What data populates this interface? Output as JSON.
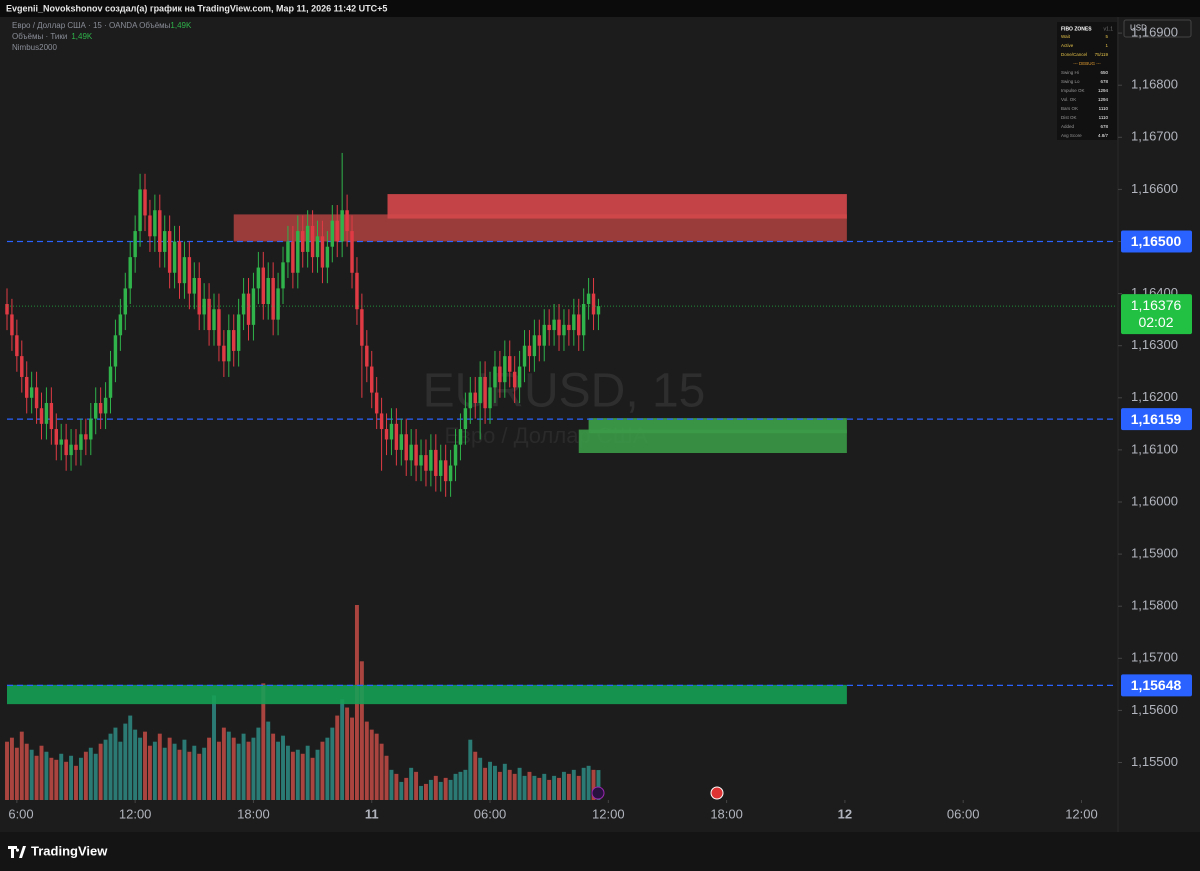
{
  "header": "Evgenii_Novokshonov создал(а) график на TradingView.com, Мар 11, 2026 11:42 UTC+5",
  "legend": {
    "symbol": "Евро / Доллар США · 15 · OANDA  Объёмы",
    "symbol_volume": "1,49K",
    "volume": "Объёмы · Тики",
    "volume_value": "1,49K",
    "indicator": "Nimbus2000"
  },
  "currency": "USD",
  "fibo_table": {
    "title": "FIBO ZONES",
    "version": "v1.1",
    "rows": [
      [
        "Wait",
        "5"
      ],
      [
        "Active",
        "1"
      ],
      [
        "Done/Cancel",
        "75/119"
      ]
    ],
    "debug": "--- DEBUG ---",
    "debug_rows": [
      [
        "Swing Hi",
        "650"
      ],
      [
        "Swing Lo",
        "678"
      ],
      [
        "Impulse OK",
        "1294"
      ],
      [
        "Vol. OK",
        "1294"
      ],
      [
        "Bars OK",
        "1110"
      ],
      [
        "Dist OK",
        "1110"
      ],
      [
        "Added",
        "678"
      ],
      [
        "Avg Score",
        "4.8/7"
      ]
    ]
  },
  "brand": "TradingView",
  "chart_data": {
    "type": "candlestick",
    "watermark": "EURUSD, 15",
    "watermark_subtitle": "Евро / Доллар США",
    "x": [
      -0.5,
      -0.25,
      0,
      0.25,
      0.5,
      0.75,
      1,
      1.25,
      1.5,
      1.75,
      2,
      2.25,
      2.5,
      2.75,
      3,
      3.25,
      3.5,
      3.75,
      4,
      4.25,
      4.5,
      4.75,
      5,
      5.25,
      5.5,
      5.75,
      6,
      6.25,
      6.5,
      6.75,
      7,
      7.25,
      7.5,
      7.75,
      8,
      8.25,
      8.5,
      8.75,
      9,
      9.25,
      9.5,
      9.75,
      10,
      10.25,
      10.5,
      10.75,
      11,
      11.25,
      11.5,
      11.75,
      12,
      12.25,
      12.5,
      12.75,
      13,
      13.25,
      13.5,
      13.75,
      14,
      14.25,
      14.5,
      14.75,
      15,
      15.25,
      15.5,
      15.75,
      16,
      16.25,
      16.5,
      16.75,
      17,
      17.25,
      17.5,
      17.75,
      18,
      18.25,
      18.5,
      18.75,
      19,
      19.25,
      19.5,
      19.75,
      20,
      20.25,
      20.5,
      20.75,
      21,
      21.25,
      21.5,
      21.75,
      22,
      22.25,
      22.5,
      22.75,
      23,
      23.25,
      23.5,
      23.75,
      24,
      24.25,
      24.5,
      24.75,
      25,
      25.25,
      25.5,
      25.75,
      26,
      26.25,
      26.5,
      26.75,
      27,
      27.25,
      27.5,
      27.75,
      28,
      28.25,
      28.5,
      28.75,
      29,
      29.25,
      29.5
    ],
    "open": [
      1.1638,
      1.1636,
      1.1632,
      1.1628,
      1.1624,
      1.162,
      1.1622,
      1.1618,
      1.1615,
      1.1619,
      1.1614,
      1.1611,
      1.1612,
      1.1609,
      1.1611,
      1.161,
      1.1613,
      1.1612,
      1.1616,
      1.1619,
      1.1617,
      1.162,
      1.1626,
      1.1632,
      1.1636,
      1.1641,
      1.1647,
      1.1652,
      1.166,
      1.1655,
      1.1651,
      1.1656,
      1.1648,
      1.1652,
      1.1644,
      1.165,
      1.1642,
      1.1647,
      1.164,
      1.1643,
      1.1636,
      1.1639,
      1.1633,
      1.1637,
      1.163,
      1.1627,
      1.1633,
      1.1629,
      1.1636,
      1.164,
      1.1634,
      1.1641,
      1.1645,
      1.1638,
      1.1643,
      1.1635,
      1.1641,
      1.1646,
      1.165,
      1.1644,
      1.1652,
      1.1648,
      1.1653,
      1.1647,
      1.1651,
      1.1645,
      1.1649,
      1.1654,
      1.165,
      1.1656,
      1.1652,
      1.1644,
      1.1637,
      1.163,
      1.1626,
      1.1621,
      1.1617,
      1.1614,
      1.1612,
      1.1615,
      1.161,
      1.1613,
      1.1608,
      1.1611,
      1.1607,
      1.1609,
      1.1606,
      1.161,
      1.1605,
      1.1608,
      1.1604,
      1.1607,
      1.1611,
      1.1614,
      1.1618,
      1.1621,
      1.1619,
      1.1624,
      1.1618,
      1.1622,
      1.1626,
      1.1623,
      1.1628,
      1.1625,
      1.1622,
      1.1626,
      1.163,
      1.1628,
      1.1632,
      1.163,
      1.1634,
      1.1633,
      1.1635,
      1.1632,
      1.1634,
      1.1633,
      1.1636,
      1.1632,
      1.1638,
      1.164,
      1.1636
    ],
    "high": [
      1.1641,
      1.1639,
      1.1635,
      1.1631,
      1.1627,
      1.1625,
      1.1625,
      1.1621,
      1.1622,
      1.1622,
      1.1617,
      1.1615,
      1.1615,
      1.1614,
      1.1614,
      1.1616,
      1.1616,
      1.1619,
      1.1622,
      1.1622,
      1.1623,
      1.1629,
      1.1635,
      1.1639,
      1.1644,
      1.165,
      1.1655,
      1.1663,
      1.1663,
      1.1658,
      1.1659,
      1.1659,
      1.1655,
      1.1655,
      1.1653,
      1.1653,
      1.165,
      1.165,
      1.1646,
      1.1646,
      1.1642,
      1.1642,
      1.164,
      1.164,
      1.1633,
      1.1636,
      1.1636,
      1.1639,
      1.1643,
      1.1643,
      1.1644,
      1.1648,
      1.1648,
      1.1646,
      1.1646,
      1.1644,
      1.1649,
      1.1653,
      1.1653,
      1.1655,
      1.1655,
      1.1656,
      1.1656,
      1.1654,
      1.1654,
      1.1652,
      1.1657,
      1.1657,
      1.1667,
      1.1659,
      1.1655,
      1.1647,
      1.164,
      1.1633,
      1.1629,
      1.1624,
      1.162,
      1.1617,
      1.1618,
      1.1618,
      1.1616,
      1.1616,
      1.1614,
      1.1614,
      1.1612,
      1.1612,
      1.1613,
      1.1613,
      1.1611,
      1.1611,
      1.161,
      1.1614,
      1.1617,
      1.1621,
      1.1624,
      1.1624,
      1.1627,
      1.1627,
      1.1625,
      1.1629,
      1.1629,
      1.1631,
      1.1631,
      1.1628,
      1.1629,
      1.1633,
      1.1633,
      1.1635,
      1.1635,
      1.1637,
      1.1637,
      1.1638,
      1.1638,
      1.1637,
      1.1637,
      1.1639,
      1.1639,
      1.1641,
      1.1643,
      1.1643,
      1.1639
    ],
    "low": [
      1.1633,
      1.1629,
      1.1625,
      1.1621,
      1.1617,
      1.1617,
      1.1615,
      1.1612,
      1.1612,
      1.1611,
      1.1608,
      1.1608,
      1.1606,
      1.1606,
      1.1607,
      1.1607,
      1.1609,
      1.1609,
      1.1613,
      1.1614,
      1.1614,
      1.1617,
      1.1623,
      1.1629,
      1.1633,
      1.1638,
      1.1644,
      1.1649,
      1.1652,
      1.1648,
      1.1648,
      1.1645,
      1.1645,
      1.1641,
      1.1641,
      1.1639,
      1.1639,
      1.1637,
      1.1637,
      1.1633,
      1.1633,
      1.163,
      1.163,
      1.1627,
      1.1624,
      1.1624,
      1.1626,
      1.1626,
      1.1633,
      1.1631,
      1.1631,
      1.1638,
      1.1635,
      1.1635,
      1.1632,
      1.1632,
      1.1638,
      1.1643,
      1.1641,
      1.1641,
      1.1645,
      1.1645,
      1.1644,
      1.1644,
      1.1642,
      1.1642,
      1.1646,
      1.1647,
      1.1647,
      1.1649,
      1.1641,
      1.1634,
      1.162,
      1.1623,
      1.1618,
      1.1614,
      1.1606,
      1.1609,
      1.1609,
      1.1607,
      1.1607,
      1.1605,
      1.1605,
      1.1604,
      1.1604,
      1.1603,
      1.1603,
      1.1602,
      1.1602,
      1.1601,
      1.1601,
      1.1604,
      1.1608,
      1.1611,
      1.1615,
      1.1616,
      1.1612,
      1.1615,
      1.1615,
      1.1619,
      1.162,
      1.162,
      1.1622,
      1.1619,
      1.1619,
      1.1623,
      1.1625,
      1.1625,
      1.1627,
      1.1627,
      1.163,
      1.163,
      1.1629,
      1.1629,
      1.163,
      1.163,
      1.1629,
      1.1629,
      1.1635,
      1.1633,
      1.1633
    ],
    "close": [
      1.1636,
      1.1632,
      1.1628,
      1.1624,
      1.162,
      1.1622,
      1.1618,
      1.1615,
      1.1619,
      1.1614,
      1.1611,
      1.1612,
      1.1609,
      1.1611,
      1.161,
      1.1613,
      1.1612,
      1.1616,
      1.1619,
      1.1617,
      1.162,
      1.1626,
      1.1632,
      1.1636,
      1.1641,
      1.1647,
      1.1652,
      1.166,
      1.1655,
      1.1651,
      1.1656,
      1.1648,
      1.1652,
      1.1644,
      1.165,
      1.1642,
      1.1647,
      1.164,
      1.1643,
      1.1636,
      1.1639,
      1.1633,
      1.1637,
      1.163,
      1.1627,
      1.1633,
      1.1629,
      1.1636,
      1.164,
      1.1634,
      1.1641,
      1.1645,
      1.1638,
      1.1643,
      1.1635,
      1.1641,
      1.1646,
      1.165,
      1.1644,
      1.1652,
      1.1648,
      1.1653,
      1.1647,
      1.1651,
      1.1645,
      1.1649,
      1.1654,
      1.165,
      1.1656,
      1.1652,
      1.1644,
      1.1637,
      1.163,
      1.1626,
      1.1621,
      1.1617,
      1.1614,
      1.1612,
      1.1615,
      1.161,
      1.1613,
      1.1608,
      1.1611,
      1.1607,
      1.1609,
      1.1606,
      1.161,
      1.1605,
      1.1608,
      1.1604,
      1.1607,
      1.1611,
      1.1614,
      1.1618,
      1.1621,
      1.1619,
      1.1624,
      1.1618,
      1.1622,
      1.1626,
      1.1623,
      1.1628,
      1.1625,
      1.1622,
      1.1626,
      1.163,
      1.1628,
      1.1632,
      1.163,
      1.1634,
      1.1633,
      1.1635,
      1.1632,
      1.1634,
      1.1633,
      1.1636,
      1.1632,
      1.1638,
      1.164,
      1.1636,
      1.16376
    ],
    "volume": [
      2900,
      3100,
      2600,
      3400,
      2800,
      2500,
      2200,
      2700,
      2400,
      2100,
      2000,
      2300,
      1900,
      2200,
      1700,
      2100,
      2400,
      2600,
      2300,
      2800,
      3000,
      3300,
      3600,
      2900,
      3800,
      4200,
      3500,
      3100,
      3400,
      2700,
      2900,
      3300,
      2600,
      3100,
      2800,
      2500,
      3000,
      2400,
      2700,
      2300,
      2600,
      3100,
      5200,
      2900,
      3600,
      3400,
      3100,
      2800,
      3300,
      2900,
      3100,
      3600,
      5800,
      3900,
      3300,
      2900,
      3200,
      2700,
      2400,
      2500,
      2300,
      2700,
      2100,
      2500,
      2900,
      3100,
      3600,
      4200,
      5000,
      4600,
      4100,
      9700,
      6900,
      3900,
      3500,
      3300,
      2800,
      2200,
      1500,
      1300,
      900,
      1100,
      1600,
      1400,
      700,
      800,
      1000,
      1200,
      900,
      1100,
      1000,
      1300,
      1400,
      1500,
      3000,
      2400,
      2100,
      1600,
      1900,
      1700,
      1400,
      1800,
      1500,
      1300,
      1600,
      1200,
      1400,
      1200,
      1100,
      1300,
      1000,
      1200,
      1100,
      1400,
      1300,
      1500,
      1200,
      1600,
      1700,
      1500,
      1490
    ],
    "up_color": "#2fb34a",
    "down_color": "#e03b44",
    "volume_up_color": "#2b7a73",
    "volume_down_color": "#a9443f",
    "zones": [
      {
        "from": 11.0,
        "to": 42.1,
        "low": 1.165,
        "high": 1.16552,
        "color": "#a7403e"
      },
      {
        "from": 18.8,
        "to": 42.1,
        "low": 1.16544,
        "high": 1.16591,
        "color": "#d6484c"
      },
      {
        "from": 29.0,
        "to": 42.1,
        "low": 1.16132,
        "high": 1.16161,
        "color": "#3da24a"
      },
      {
        "from": 28.5,
        "to": 42.1,
        "low": 1.16094,
        "high": 1.16139,
        "color": "#3b9a47"
      },
      {
        "from": -0.5,
        "to": 42.1,
        "low": 1.15612,
        "high": 1.15649,
        "color": "#16a055"
      }
    ],
    "price_lines": [
      {
        "value": 1.165,
        "label": "1,16500"
      },
      {
        "value": 1.16159,
        "label": "1,16159"
      },
      {
        "value": 1.15648,
        "label": "1,15648"
      }
    ],
    "price_line_color": "#2962ff",
    "last_price": {
      "value": 1.16376,
      "label": "1,16376",
      "countdown": "02:02",
      "color": "#22c043"
    },
    "xlim": [
      -0.5,
      55.7
    ],
    "xticks": [
      {
        "value": 0,
        "label": "6:00"
      },
      {
        "value": 6,
        "label": "12:00"
      },
      {
        "value": 12,
        "label": "18:00"
      },
      {
        "value": 18,
        "label": "11"
      },
      {
        "value": 24,
        "label": "06:00"
      },
      {
        "value": 30,
        "label": "12:00"
      },
      {
        "value": 36,
        "label": "18:00"
      },
      {
        "value": 42,
        "label": "12"
      },
      {
        "value": 48,
        "label": "06:00"
      },
      {
        "value": 54,
        "label": "12:00"
      }
    ],
    "ylim": [
      1.15428,
      1.16929
    ],
    "yticks": [
      {
        "value": 1.155,
        "label": "1,15500"
      },
      {
        "value": 1.156,
        "label": "1,15600"
      },
      {
        "value": 1.157,
        "label": "1,15700"
      },
      {
        "value": 1.158,
        "label": "1,15800"
      },
      {
        "value": 1.159,
        "label": "1,15900"
      },
      {
        "value": 1.16,
        "label": "1,16000"
      },
      {
        "value": 1.161,
        "label": "1,16100"
      },
      {
        "value": 1.162,
        "label": "1,16200"
      },
      {
        "value": 1.163,
        "label": "1,16300"
      },
      {
        "value": 1.164,
        "label": "1,16400"
      },
      {
        "value": 1.165,
        "label": "1,16500"
      },
      {
        "value": 1.166,
        "label": "1,16600"
      },
      {
        "value": 1.167,
        "label": "1,16700"
      },
      {
        "value": 1.168,
        "label": "1,16800"
      },
      {
        "value": 1.169,
        "label": "1,16900"
      }
    ],
    "grid": false
  }
}
